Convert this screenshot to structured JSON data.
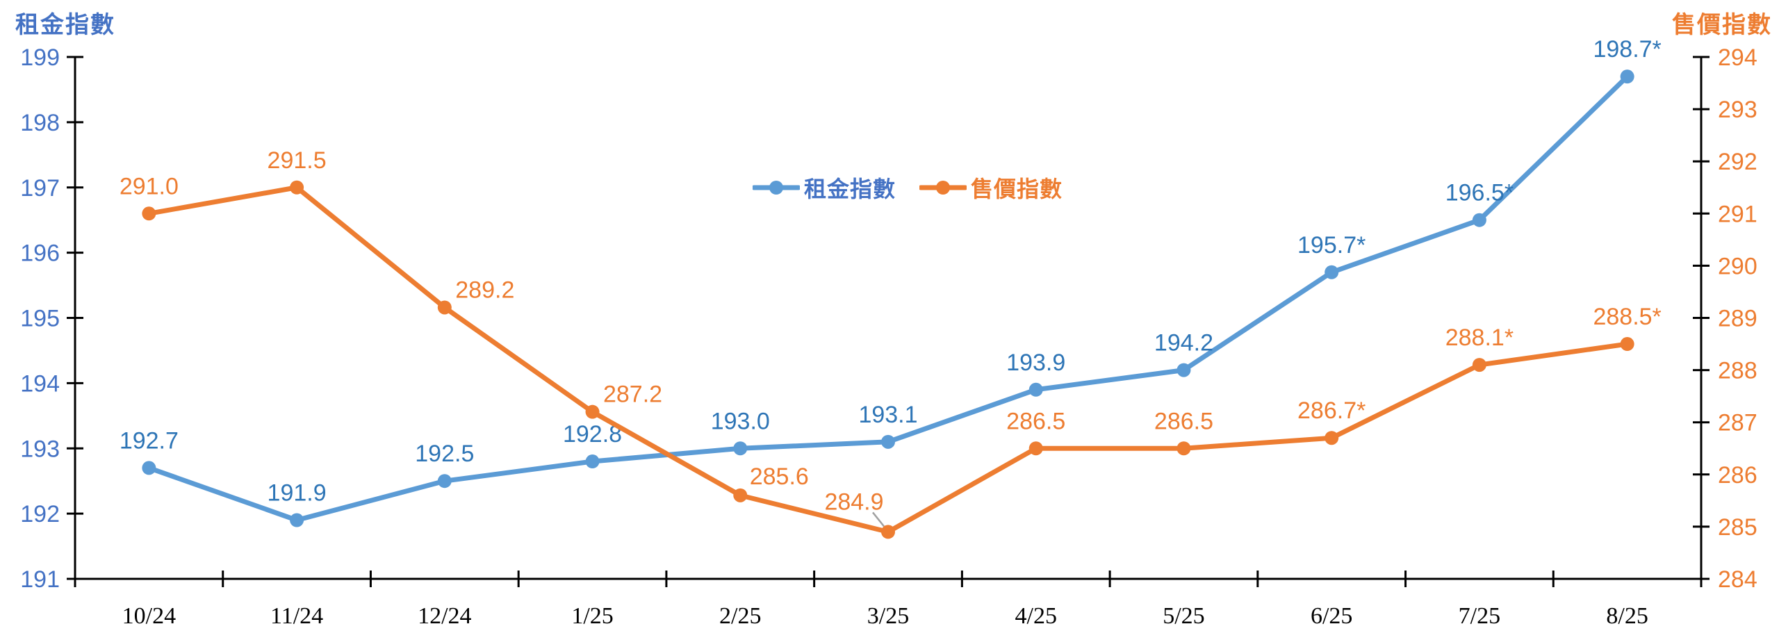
{
  "page": {
    "background": "#ffffff"
  },
  "chart_data": {
    "type": "line",
    "title": "",
    "categories": [
      "10/24",
      "11/24",
      "12/24",
      "1/25",
      "2/25",
      "3/25",
      "4/25",
      "5/25",
      "6/25",
      "7/25",
      "8/25"
    ],
    "series": [
      {
        "name": "租金指數",
        "axis": "left",
        "color": "#5B9BD5",
        "label_color": "#2E75B6",
        "values": [
          192.7,
          191.9,
          192.5,
          192.8,
          193.0,
          193.1,
          193.9,
          194.2,
          195.7,
          196.5,
          198.7
        ],
        "labels": [
          "192.7",
          "191.9",
          "192.5",
          "192.8",
          "193.0",
          "193.1",
          "193.9",
          "194.2",
          "195.7*",
          "196.5*",
          "198.7*"
        ]
      },
      {
        "name": "售價指數",
        "axis": "right",
        "color": "#ED7D31",
        "label_color": "#ED7D31",
        "values": [
          291.0,
          291.5,
          289.2,
          287.2,
          285.6,
          284.9,
          286.5,
          286.5,
          286.7,
          288.1,
          288.5
        ],
        "labels": [
          "291.0",
          "291.5",
          "289.2",
          "287.2",
          "285.6",
          "284.9",
          "286.5",
          "286.5",
          "286.7*",
          "288.1*",
          "288.5*"
        ]
      }
    ],
    "axes": {
      "left": {
        "title": "租金指數",
        "min": 191,
        "max": 199,
        "step": 1,
        "color": "#4472C4",
        "tick_labels": [
          "191",
          "192",
          "193",
          "194",
          "195",
          "196",
          "197",
          "198",
          "199"
        ]
      },
      "right": {
        "title": "售價指數",
        "min": 284,
        "max": 294,
        "step": 1,
        "color": "#ED7D31",
        "tick_labels": [
          "284",
          "285",
          "286",
          "287",
          "288",
          "289",
          "290",
          "291",
          "292",
          "293",
          "294"
        ]
      },
      "x": {
        "color": "#000000"
      }
    },
    "legend": {
      "position": "top-center",
      "items": [
        "租金指數",
        "售價指數"
      ]
    },
    "grid": false
  }
}
